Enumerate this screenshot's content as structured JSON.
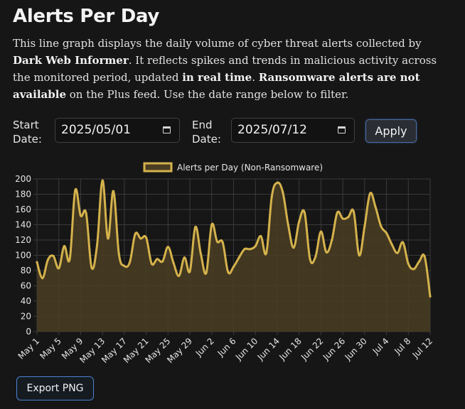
{
  "header": {
    "title": "Alerts Per Day"
  },
  "description": {
    "p1": "This line graph displays the daily volume of cyber threat alerts collected by ",
    "b1": "Dark Web Informer",
    "p2": ". It reflects spikes and trends in malicious activity across the monitored period, updated ",
    "b2": "in real time",
    "p3": ". ",
    "b3": "Ransomware alerts are not available",
    "p4": " on the Plus feed. Use the date range below to filter."
  },
  "filters": {
    "start_label_1": "Start",
    "start_label_2": "Date:",
    "start_value": "2025/05/01",
    "end_label_1": "End",
    "end_label_2": "Date:",
    "end_value": "2025/07/12",
    "apply_label": "Apply"
  },
  "export": {
    "label": "Export PNG"
  },
  "colors": {
    "line": "#d4b24c",
    "fill": "#4a3d22",
    "grid": "#3a3a3a",
    "background": "#161616"
  },
  "icons": {
    "date_picker": "calendar-icon"
  },
  "chart_data": {
    "type": "area",
    "legend": "Alerts per Day (Non-Ransomware)",
    "legend_position": "top",
    "ylim": [
      0,
      200
    ],
    "yticks": [
      0,
      20,
      40,
      60,
      80,
      100,
      120,
      140,
      160,
      180,
      200
    ],
    "grid": true,
    "xtick_labels": [
      "May 1",
      "May 5",
      "May 9",
      "May 13",
      "May 17",
      "May 21",
      "May 25",
      "May 29",
      "Jun 2",
      "Jun 6",
      "Jun 10",
      "Jun 14",
      "Jun 18",
      "Jun 22",
      "Jun 26",
      "Jun 30",
      "Jul 4",
      "Jul 8",
      "Jul 12"
    ],
    "xtick_every": 4,
    "x": [
      "May 1",
      "May 2",
      "May 3",
      "May 4",
      "May 5",
      "May 6",
      "May 7",
      "May 8",
      "May 9",
      "May 10",
      "May 11",
      "May 12",
      "May 13",
      "May 14",
      "May 15",
      "May 16",
      "May 17",
      "May 18",
      "May 19",
      "May 20",
      "May 21",
      "May 22",
      "May 23",
      "May 24",
      "May 25",
      "May 26",
      "May 27",
      "May 28",
      "May 29",
      "May 30",
      "May 31",
      "Jun 1",
      "Jun 2",
      "Jun 3",
      "Jun 4",
      "Jun 5",
      "Jun 6",
      "Jun 7",
      "Jun 8",
      "Jun 9",
      "Jun 10",
      "Jun 11",
      "Jun 12",
      "Jun 13",
      "Jun 14",
      "Jun 15",
      "Jun 16",
      "Jun 17",
      "Jun 18",
      "Jun 19",
      "Jun 20",
      "Jun 21",
      "Jun 22",
      "Jun 23",
      "Jun 24",
      "Jun 25",
      "Jun 26",
      "Jun 27",
      "Jun 28",
      "Jun 29",
      "Jun 30",
      "Jul 1",
      "Jul 2",
      "Jul 3",
      "Jul 4",
      "Jul 5",
      "Jul 6",
      "Jul 7",
      "Jul 8",
      "Jul 9",
      "Jul 10",
      "Jul 11",
      "Jul 12"
    ],
    "values": [
      91,
      70,
      94,
      99,
      83,
      112,
      95,
      185,
      152,
      155,
      84,
      113,
      198,
      122,
      184,
      102,
      86,
      91,
      128,
      122,
      123,
      89,
      95,
      92,
      111,
      90,
      73,
      97,
      79,
      137,
      102,
      77,
      140,
      118,
      117,
      78,
      85,
      97,
      108,
      108,
      112,
      125,
      103,
      177,
      195,
      183,
      140,
      110,
      144,
      156,
      95,
      98,
      131,
      104,
      120,
      156,
      148,
      150,
      157,
      100,
      138,
      181,
      163,
      138,
      129,
      114,
      103,
      117,
      89,
      82,
      92,
      98,
      46
    ]
  }
}
